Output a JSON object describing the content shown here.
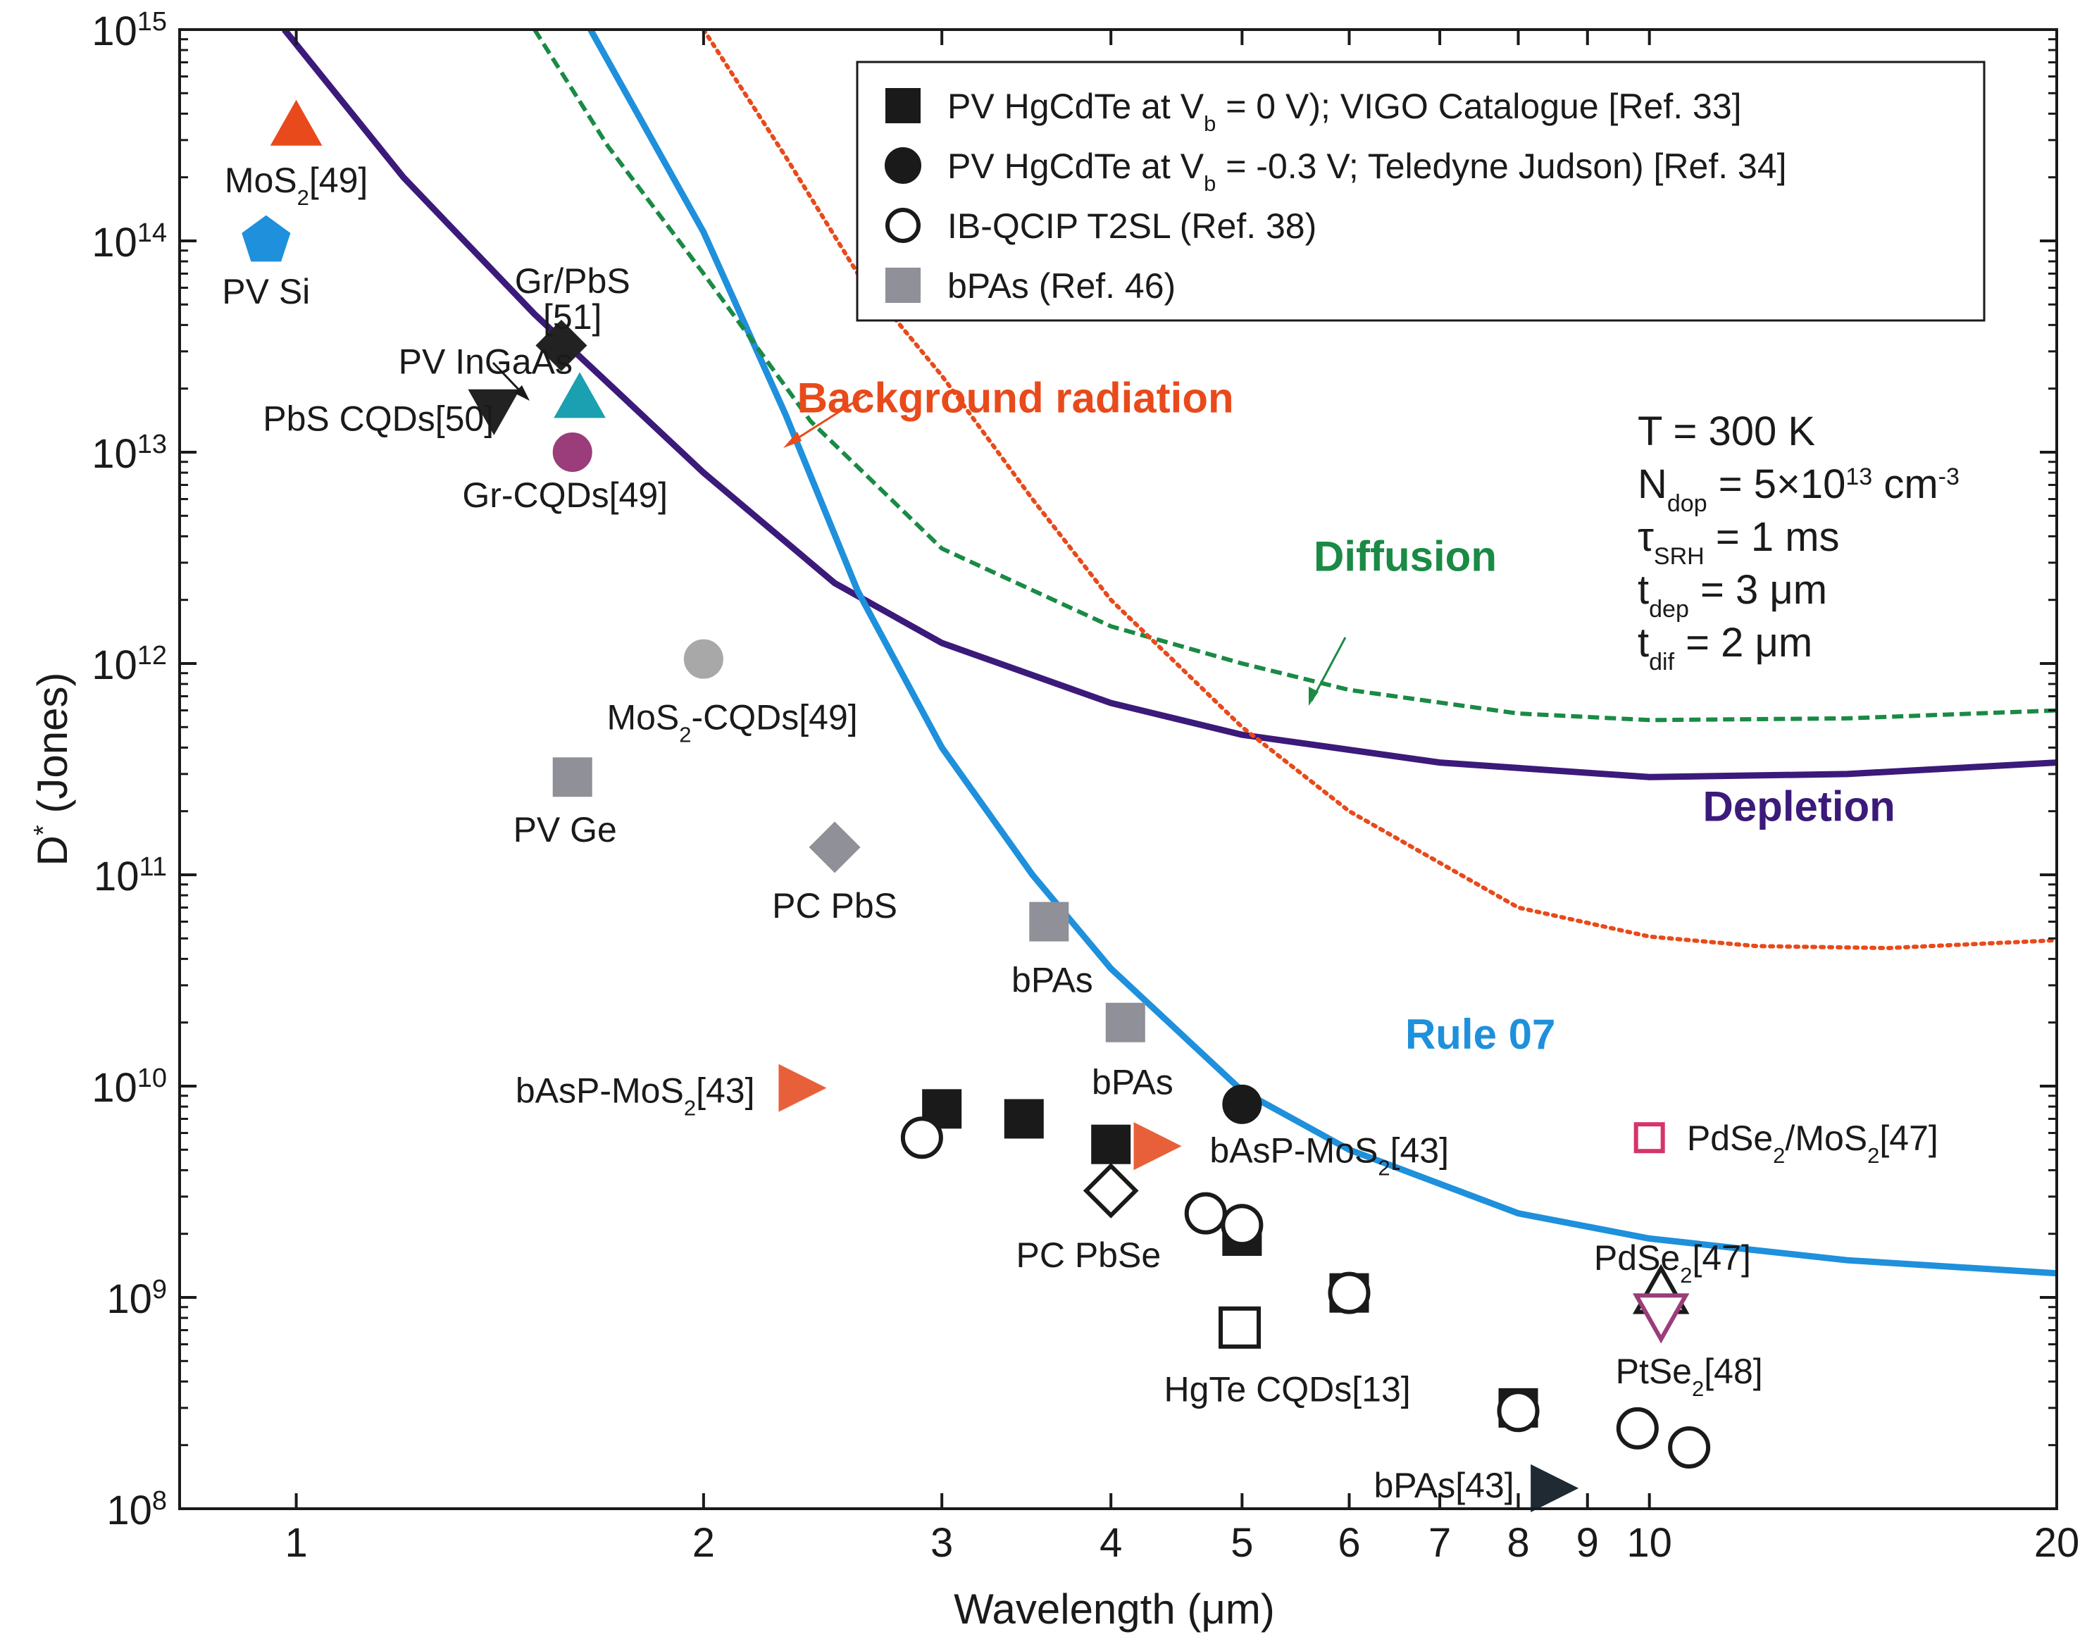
{
  "chart_data": {
    "type": "scatter",
    "title": "",
    "xlabel": "Wavelength (μm)",
    "ylabel": "D* (Jones)",
    "xscale": "log",
    "yscale": "log",
    "xlim": [
      0.82,
      20
    ],
    "ylim": [
      100000000.0,
      1000000000000000.0
    ],
    "x_ticks": [
      {
        "value": 1,
        "label": "1"
      },
      {
        "value": 2,
        "label": "2"
      },
      {
        "value": 3,
        "label": "3"
      },
      {
        "value": 4,
        "label": "4"
      },
      {
        "value": 5,
        "label": "5"
      },
      {
        "value": 6,
        "label": "6"
      },
      {
        "value": 7,
        "label": "7"
      },
      {
        "value": 8,
        "label": "8"
      },
      {
        "value": 9,
        "label": "9"
      },
      {
        "value": 10,
        "label": "10"
      },
      {
        "value": 20,
        "label": "20"
      }
    ],
    "y_ticks": [
      {
        "value": 100000000.0,
        "exp": "8"
      },
      {
        "value": 1000000000.0,
        "exp": "9"
      },
      {
        "value": 10000000000.0,
        "exp": "10"
      },
      {
        "value": 100000000000.0,
        "exp": "11"
      },
      {
        "value": 1000000000000.0,
        "exp": "12"
      },
      {
        "value": 10000000000000.0,
        "exp": "13"
      },
      {
        "value": 100000000000000.0,
        "exp": "14"
      },
      {
        "value": 1000000000000000.0,
        "exp": "15"
      }
    ],
    "curves": [
      {
        "name": "Depletion",
        "color": "#3b1a7a",
        "style": "solid",
        "points": [
          [
            0.98,
            1000000000000000.0
          ],
          [
            1.2,
            200000000000000.0
          ],
          [
            1.5,
            45000000000000.0
          ],
          [
            2,
            8000000000000.0
          ],
          [
            2.5,
            2400000000000.0
          ],
          [
            3,
            1250000000000.0
          ],
          [
            4,
            650000000000.0
          ],
          [
            5,
            460000000000.0
          ],
          [
            7,
            340000000000.0
          ],
          [
            10,
            290000000000.0
          ],
          [
            14,
            300000000000.0
          ],
          [
            20,
            340000000000.0
          ]
        ]
      },
      {
        "name": "Rule 07",
        "color": "#1e90dc",
        "style": "solid",
        "points": [
          [
            1.65,
            1000000000000000.0
          ],
          [
            2,
            110000000000000.0
          ],
          [
            2.3,
            15000000000000.0
          ],
          [
            2.6,
            2200000000000.0
          ],
          [
            3,
            400000000000.0
          ],
          [
            3.5,
            100000000000.0
          ],
          [
            4,
            36000000000.0
          ],
          [
            5,
            9500000000.0
          ],
          [
            6,
            5000000000.0
          ],
          [
            8,
            2500000000.0
          ],
          [
            10,
            1900000000.0
          ],
          [
            14,
            1500000000.0
          ],
          [
            20,
            1300000000.0
          ]
        ]
      },
      {
        "name": "Diffusion",
        "color": "#1a8a45",
        "style": "dashed",
        "points": [
          [
            1.5,
            1000000000000000.0
          ],
          [
            1.7,
            280000000000000.0
          ],
          [
            2,
            70000000000000.0
          ],
          [
            2.4,
            14000000000000.0
          ],
          [
            3,
            3500000000000.0
          ],
          [
            4,
            1500000000000.0
          ],
          [
            5,
            1000000000000.0
          ],
          [
            6,
            750000000000.0
          ],
          [
            8,
            580000000000.0
          ],
          [
            10,
            540000000000.0
          ],
          [
            14,
            550000000000.0
          ],
          [
            20,
            600000000000.0
          ]
        ]
      },
      {
        "name": "Background radiation",
        "color": "#e84a1b",
        "style": "dotted",
        "points": [
          [
            2.0,
            1000000000000000.0
          ],
          [
            2.3,
            250000000000000.0
          ],
          [
            2.6,
            70000000000000.0
          ],
          [
            3,
            23000000000000.0
          ],
          [
            3.5,
            6000000000000.0
          ],
          [
            4,
            2000000000000.0
          ],
          [
            5,
            500000000000.0
          ],
          [
            6,
            200000000000.0
          ],
          [
            8,
            70000000000.0
          ],
          [
            10,
            51000000000.0
          ],
          [
            12,
            46000000000.0
          ],
          [
            15,
            45000000000.0
          ],
          [
            20,
            49000000000.0
          ]
        ]
      }
    ],
    "curve_labels": [
      {
        "text": "Background radiation",
        "x": 3.4,
        "y": 18000000000000.0,
        "color": "#e84a1b",
        "bold": true
      },
      {
        "text": "Diffusion",
        "x": 6.6,
        "y": 3200000000000.0,
        "color": "#1a8a45",
        "bold": true
      },
      {
        "text": "Depletion",
        "x": 12.9,
        "y": 210000000000.0,
        "color": "#3b1a7a",
        "bold": true
      },
      {
        "text": "Rule 07",
        "x": 7.5,
        "y": 17500000000.0,
        "color": "#1e90dc",
        "bold": true
      }
    ],
    "points": [
      {
        "name": "MoS2[49] (visible)",
        "x": 1.0,
        "y": 350000000000000.0,
        "shape": "triangle-up",
        "fill": "#e84a1b",
        "stroke": "#e84a1b"
      },
      {
        "name": "PV Si",
        "x": 0.95,
        "y": 100000000000000.0,
        "shape": "pentagon",
        "fill": "#1e90dc",
        "stroke": "#1e90dc"
      },
      {
        "name": "Gr/PbS[51]",
        "x": 1.57,
        "y": 32000000000000.0,
        "shape": "diamond",
        "fill": "#222222",
        "stroke": "#222222"
      },
      {
        "name": "PbS CQDs[50]",
        "x": 1.4,
        "y": 16000000000000.0,
        "shape": "triangle-down",
        "fill": "#222222",
        "stroke": "#222222"
      },
      {
        "name": "PV InGaAs",
        "x": 1.62,
        "y": 18000000000000.0,
        "shape": "triangle-up",
        "fill": "#1aa0b0",
        "stroke": "#1aa0b0"
      },
      {
        "name": "Gr-CQDs[49]",
        "x": 1.6,
        "y": 10000000000000.0,
        "shape": "circle",
        "fill": "#9a3d7a",
        "stroke": "#9a3d7a"
      },
      {
        "name": "MoS2-CQDs[49]",
        "x": 2.0,
        "y": 1050000000000.0,
        "shape": "circle",
        "fill": "#a8a8a8",
        "stroke": "#a8a8a8"
      },
      {
        "name": "PV Ge",
        "x": 1.6,
        "y": 290000000000.0,
        "shape": "square",
        "fill": "#8f9098",
        "stroke": "#8f9098"
      },
      {
        "name": "PC PbS",
        "x": 2.5,
        "y": 135000000000.0,
        "shape": "diamond",
        "fill": "#8f9098",
        "stroke": "#8f9098"
      },
      {
        "name": "bPAs",
        "x": 3.6,
        "y": 60000000000.0,
        "shape": "square",
        "fill": "#8f9098",
        "stroke": "#8f9098"
      },
      {
        "name": "bPAs",
        "x": 4.1,
        "y": 20000000000.0,
        "shape": "square",
        "fill": "#8f9098",
        "stroke": "#8f9098"
      },
      {
        "name": "bAsP-MoS2[43]",
        "x": 2.35,
        "y": 9800000000.0,
        "shape": "triangle-right",
        "fill": "#e8603a",
        "stroke": "#e8603a"
      },
      {
        "name": "bAsP-MoS2[43]",
        "x": 4.3,
        "y": 5200000000.0,
        "shape": "triangle-right",
        "fill": "#e8603a",
        "stroke": "#e8603a"
      },
      {
        "name": "PV HgCdTe Vb=0",
        "x": 3.0,
        "y": 7800000000.0,
        "shape": "square",
        "fill": "#1a1a1a",
        "stroke": "#1a1a1a"
      },
      {
        "name": "PV HgCdTe Vb=0",
        "x": 3.45,
        "y": 7000000000.0,
        "shape": "square",
        "fill": "#1a1a1a",
        "stroke": "#1a1a1a"
      },
      {
        "name": "PV HgCdTe Vb=0",
        "x": 4.0,
        "y": 5300000000.0,
        "shape": "square",
        "fill": "#1a1a1a",
        "stroke": "#1a1a1a"
      },
      {
        "name": "PV HgCdTe Vb=0",
        "x": 5.0,
        "y": 1950000000.0,
        "shape": "square",
        "fill": "#1a1a1a",
        "stroke": "#1a1a1a"
      },
      {
        "name": "PV HgCdTe Vb=0",
        "x": 6.0,
        "y": 1050000000.0,
        "shape": "square",
        "fill": "#1a1a1a",
        "stroke": "#1a1a1a"
      },
      {
        "name": "PV HgCdTe Vb=0",
        "x": 8.0,
        "y": 300000000.0,
        "shape": "square",
        "fill": "#1a1a1a",
        "stroke": "#1a1a1a"
      },
      {
        "name": "PV HgCdTe Vb=-0.3V",
        "x": 5.0,
        "y": 8200000000.0,
        "shape": "circle",
        "fill": "#1a1a1a",
        "stroke": "#1a1a1a"
      },
      {
        "name": "IB-QCIP T2SL",
        "x": 2.9,
        "y": 5700000000.0,
        "shape": "circle",
        "fill": "#ffffff",
        "stroke": "#1a1a1a",
        "open": true
      },
      {
        "name": "IB-QCIP T2SL",
        "x": 4.7,
        "y": 2500000000.0,
        "shape": "circle",
        "fill": "#ffffff",
        "stroke": "#1a1a1a",
        "open": true
      },
      {
        "name": "IB-QCIP T2SL",
        "x": 5.0,
        "y": 2200000000.0,
        "shape": "circle",
        "fill": "#ffffff",
        "stroke": "#1a1a1a",
        "open": true
      },
      {
        "name": "IB-QCIP T2SL",
        "x": 6.0,
        "y": 1050000000.0,
        "shape": "circle",
        "fill": "#ffffff",
        "stroke": "#1a1a1a",
        "open": true
      },
      {
        "name": "IB-QCIP T2SL",
        "x": 8.0,
        "y": 290000000.0,
        "shape": "circle",
        "fill": "#ffffff",
        "stroke": "#1a1a1a",
        "open": true
      },
      {
        "name": "IB-QCIP T2SL",
        "x": 9.8,
        "y": 240000000.0,
        "shape": "circle",
        "fill": "#ffffff",
        "stroke": "#1a1a1a",
        "open": true
      },
      {
        "name": "IB-QCIP T2SL",
        "x": 10.7,
        "y": 195000000.0,
        "shape": "circle",
        "fill": "#ffffff",
        "stroke": "#1a1a1a",
        "open": true
      },
      {
        "name": "PC PbSe",
        "x": 4.0,
        "y": 3200000000.0,
        "shape": "diamond",
        "fill": "#ffffff",
        "stroke": "#1a1a1a",
        "open": true
      },
      {
        "name": "HgTe CQDs[13]",
        "x": 4.98,
        "y": 720000000.0,
        "shape": "square",
        "fill": "#ffffff",
        "stroke": "#1a1a1a",
        "open": true
      },
      {
        "name": "PdSe2/MoS2[47]",
        "x": 10.0,
        "y": 5700000000.0,
        "shape": "square",
        "fill": "#ffffff",
        "stroke": "#d6336c",
        "open": true,
        "small": true
      },
      {
        "name": "PdSe2[47]",
        "x": 10.2,
        "y": 1050000000.0,
        "shape": "triangle-up",
        "fill": "#ffffff",
        "stroke": "#1a1a1a",
        "open": true
      },
      {
        "name": "PtSe2[48]",
        "x": 10.2,
        "y": 830000000.0,
        "shape": "triangle-down",
        "fill": "#ffffff",
        "stroke": "#9a3d7a",
        "open": true
      },
      {
        "name": "bPAs[43]",
        "x": 8.45,
        "y": 125000000.0,
        "shape": "triangle-right",
        "fill": "#1f2a33",
        "stroke": "#1f2a33"
      }
    ],
    "point_labels": [
      {
        "base": "MoS",
        "sub": "2",
        "rest": "[49]",
        "x": 1.0,
        "y": 195000000000000.0
      },
      {
        "base": "PV Si",
        "x": 0.95,
        "y": 58000000000000.0
      },
      {
        "base": "Gr/PbS",
        "x": 1.6,
        "y": 65000000000000.0
      },
      {
        "base": "[51]",
        "x": 1.6,
        "y": 44000000000000.0
      },
      {
        "base": "PV InGaAs",
        "x": 1.38,
        "y": 27000000000000.0
      },
      {
        "base": "PbS CQDs[50]",
        "x": 1.15,
        "y": 14500000000000.0
      },
      {
        "base": "Gr-CQDs[49]",
        "x": 1.58,
        "y": 6300000000000.0
      },
      {
        "base": "MoS",
        "sub": "2",
        "rest": "-CQDs[49]",
        "x": 2.1,
        "y": 560000000000.0
      },
      {
        "base": "PV Ge",
        "x": 1.58,
        "y": 165000000000.0
      },
      {
        "base": "PC PbS",
        "x": 2.5,
        "y": 72000000000.0
      },
      {
        "base": "bPAs",
        "x": 3.62,
        "y": 32000000000.0
      },
      {
        "base": "bPAs",
        "x": 4.15,
        "y": 10500000000.0
      },
      {
        "base": "bAsP-MoS",
        "sub": "2",
        "rest": "[43]",
        "x": 1.78,
        "y": 9600000000.0
      },
      {
        "base": "bAsP-MoS",
        "sub": "2",
        "rest": "[43]",
        "x": 5.8,
        "y": 5000000000.0
      },
      {
        "base": "PC PbSe",
        "x": 3.85,
        "y": 1600000000.0
      },
      {
        "base": "HgTe CQDs[13]",
        "x": 5.4,
        "y": 370000000.0
      },
      {
        "base": "PdSe",
        "sub": "2",
        "rest": "/MoS",
        "sub2": "2",
        "rest2": "[47]",
        "x": 13.2,
        "y": 5700000000.0
      },
      {
        "base": "PdSe",
        "sub": "2",
        "rest": "[47]",
        "x": 10.4,
        "y": 1550000000.0
      },
      {
        "base": "PtSe",
        "sub": "2",
        "rest": "[48]",
        "x": 10.7,
        "y": 450000000.0
      },
      {
        "base": "bPAs[43]",
        "x": 7.05,
        "y": 130000000.0
      }
    ],
    "legend": {
      "placement": "top-right",
      "entries": [
        {
          "marker": "square-filled",
          "parts": [
            "PV HgCdTe at V",
            "b",
            " = 0 V); VIGO Catalogue [Ref. 33]"
          ]
        },
        {
          "marker": "circle-filled",
          "parts": [
            "PV HgCdTe at V",
            "b",
            " = -0.3 V; Teledyne Judson) [Ref. 34]"
          ]
        },
        {
          "marker": "circle-open",
          "parts": [
            "IB-QCIP T2SL (Ref. 38)",
            "",
            ""
          ]
        },
        {
          "marker": "square-gray",
          "parts": [
            "bPAs (Ref. 46)",
            "",
            ""
          ]
        }
      ]
    },
    "parameters": [
      {
        "main": "T = 300 K"
      },
      {
        "main": "N",
        "sub": "dop",
        "rest": " = 5×10",
        "sup": "13",
        "rest2": " cm",
        "sup2": "-3"
      },
      {
        "main": "τ",
        "sub": "SRH",
        "rest": " = 1 ms"
      },
      {
        "main": "t",
        "sub": "dep",
        "rest": " = 3 μm"
      },
      {
        "main": "t",
        "sub": "dif",
        "rest": " = 2 μm"
      }
    ]
  }
}
